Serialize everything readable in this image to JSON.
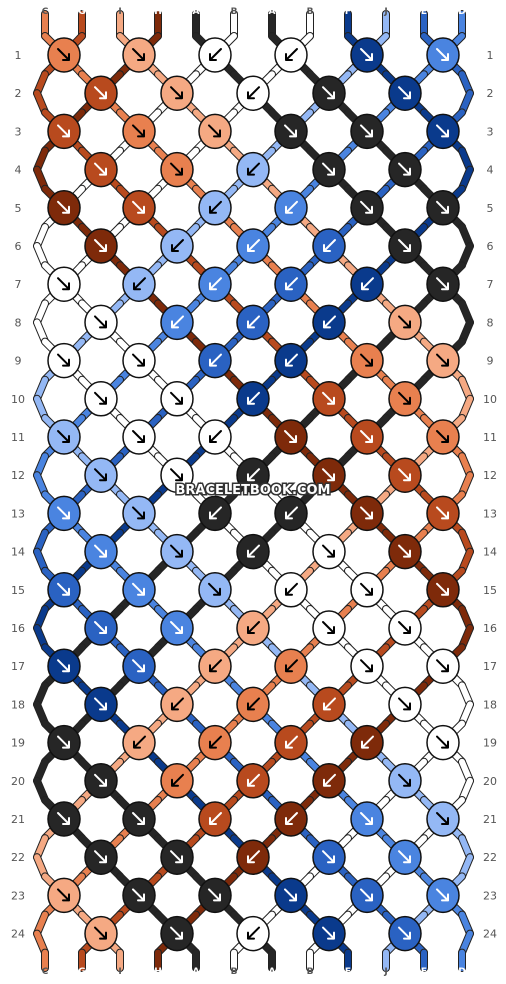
{
  "watermark": "BRACELETBOOK.COM",
  "colors": {
    "C": "#e8804f",
    "G": "#b84a1e",
    "I": "#f5a983",
    "H": "#7e2a0a",
    "A": "#262626",
    "B": "#ffffff",
    "F": "#0a3a8c",
    "J": "#94b8f5",
    "E": "#2a62c2",
    "D": "#4a84e0"
  },
  "strands": {
    "top": [
      "C",
      "G",
      "I",
      "H",
      "A",
      "B",
      "A",
      "B",
      "F",
      "J",
      "E",
      "D"
    ],
    "bottom": [
      "C",
      "G",
      "I",
      "H",
      "A",
      "B",
      "A",
      "B",
      "F",
      "J",
      "E",
      "D"
    ]
  },
  "rows": [
    "1",
    "2",
    "3",
    "4",
    "5",
    "6",
    "7",
    "8",
    "9",
    "10",
    "11",
    "12",
    "13",
    "14",
    "15",
    "16",
    "17",
    "18",
    "19",
    "20",
    "21",
    "22",
    "23",
    "24"
  ],
  "knots": [
    [
      [
        "C",
        "rr"
      ],
      [
        "I",
        "rr"
      ],
      [
        "B",
        "ll"
      ],
      [
        "B",
        "ll"
      ],
      [
        "F",
        "rr"
      ],
      [
        "D",
        "rr"
      ]
    ],
    [
      [
        "G",
        "rr"
      ],
      [
        "I",
        "rr"
      ],
      [
        "B",
        "ll"
      ],
      [
        "A",
        "rr"
      ],
      [
        "F",
        "rr"
      ]
    ],
    [
      [
        "G",
        "rr"
      ],
      [
        "C",
        "rr"
      ],
      [
        "I",
        "rr"
      ],
      [
        "A",
        "rr"
      ],
      [
        "A",
        "rr"
      ],
      [
        "F",
        "rr"
      ]
    ],
    [
      [
        "G",
        "rr"
      ],
      [
        "C",
        "rr"
      ],
      [
        "J",
        "ll"
      ],
      [
        "A",
        "rr"
      ],
      [
        "A",
        "rr"
      ]
    ],
    [
      [
        "H",
        "rr"
      ],
      [
        "G",
        "rr"
      ],
      [
        "J",
        "ll"
      ],
      [
        "D",
        "ll"
      ],
      [
        "A",
        "rr"
      ],
      [
        "A",
        "rr"
      ]
    ],
    [
      [
        "H",
        "rr"
      ],
      [
        "J",
        "ll"
      ],
      [
        "D",
        "ll"
      ],
      [
        "E",
        "ll"
      ],
      [
        "A",
        "rr"
      ]
    ],
    [
      [
        "B",
        "rr"
      ],
      [
        "J",
        "ll"
      ],
      [
        "D",
        "ll"
      ],
      [
        "E",
        "ll"
      ],
      [
        "F",
        "ll"
      ],
      [
        "A",
        "rr"
      ]
    ],
    [
      [
        "B",
        "rr"
      ],
      [
        "D",
        "ll"
      ],
      [
        "E",
        "ll"
      ],
      [
        "F",
        "ll"
      ],
      [
        "I",
        "rr"
      ]
    ],
    [
      [
        "B",
        "rr"
      ],
      [
        "B",
        "rr"
      ],
      [
        "E",
        "ll"
      ],
      [
        "F",
        "ll"
      ],
      [
        "C",
        "rr"
      ],
      [
        "I",
        "rr"
      ]
    ],
    [
      [
        "B",
        "rr"
      ],
      [
        "B",
        "rr"
      ],
      [
        "F",
        "ll"
      ],
      [
        "G",
        "rr"
      ],
      [
        "C",
        "rr"
      ]
    ],
    [
      [
        "J",
        "rr"
      ],
      [
        "B",
        "rr"
      ],
      [
        "B",
        "ll"
      ],
      [
        "H",
        "rr"
      ],
      [
        "G",
        "rr"
      ],
      [
        "C",
        "rr"
      ]
    ],
    [
      [
        "J",
        "rr"
      ],
      [
        "B",
        "rr"
      ],
      [
        "A",
        "ll"
      ],
      [
        "H",
        "rr"
      ],
      [
        "G",
        "rr"
      ]
    ],
    [
      [
        "D",
        "rr"
      ],
      [
        "J",
        "rr"
      ],
      [
        "A",
        "ll"
      ],
      [
        "A",
        "ll"
      ],
      [
        "H",
        "rr"
      ],
      [
        "G",
        "rr"
      ]
    ],
    [
      [
        "D",
        "rr"
      ],
      [
        "J",
        "rr"
      ],
      [
        "A",
        "ll"
      ],
      [
        "B",
        "rr"
      ],
      [
        "H",
        "rr"
      ]
    ],
    [
      [
        "E",
        "rr"
      ],
      [
        "D",
        "rr"
      ],
      [
        "J",
        "rr"
      ],
      [
        "B",
        "ll"
      ],
      [
        "B",
        "rr"
      ],
      [
        "H",
        "rr"
      ]
    ],
    [
      [
        "E",
        "rr"
      ],
      [
        "D",
        "rr"
      ],
      [
        "I",
        "ll"
      ],
      [
        "B",
        "rr"
      ],
      [
        "B",
        "rr"
      ]
    ],
    [
      [
        "F",
        "rr"
      ],
      [
        "E",
        "rr"
      ],
      [
        "I",
        "ll"
      ],
      [
        "C",
        "ll"
      ],
      [
        "B",
        "rr"
      ],
      [
        "B",
        "rr"
      ]
    ],
    [
      [
        "F",
        "rr"
      ],
      [
        "I",
        "ll"
      ],
      [
        "C",
        "ll"
      ],
      [
        "G",
        "ll"
      ],
      [
        "B",
        "rr"
      ]
    ],
    [
      [
        "A",
        "rr"
      ],
      [
        "I",
        "ll"
      ],
      [
        "C",
        "ll"
      ],
      [
        "G",
        "ll"
      ],
      [
        "H",
        "ll"
      ],
      [
        "B",
        "rr"
      ]
    ],
    [
      [
        "A",
        "rr"
      ],
      [
        "C",
        "ll"
      ],
      [
        "G",
        "ll"
      ],
      [
        "H",
        "ll"
      ],
      [
        "J",
        "rr"
      ]
    ],
    [
      [
        "A",
        "rr"
      ],
      [
        "A",
        "rr"
      ],
      [
        "G",
        "ll"
      ],
      [
        "H",
        "ll"
      ],
      [
        "D",
        "rr"
      ],
      [
        "J",
        "rr"
      ]
    ],
    [
      [
        "A",
        "rr"
      ],
      [
        "A",
        "rr"
      ],
      [
        "H",
        "ll"
      ],
      [
        "E",
        "rr"
      ],
      [
        "D",
        "rr"
      ]
    ],
    [
      [
        "I",
        "rr"
      ],
      [
        "A",
        "rr"
      ],
      [
        "A",
        "rr"
      ],
      [
        "F",
        "rr"
      ],
      [
        "E",
        "rr"
      ],
      [
        "D",
        "rr"
      ]
    ],
    [
      [
        "I",
        "rr"
      ],
      [
        "A",
        "rr"
      ],
      [
        "B",
        "ll"
      ],
      [
        "F",
        "rr"
      ],
      [
        "E",
        "rr"
      ]
    ]
  ]
}
